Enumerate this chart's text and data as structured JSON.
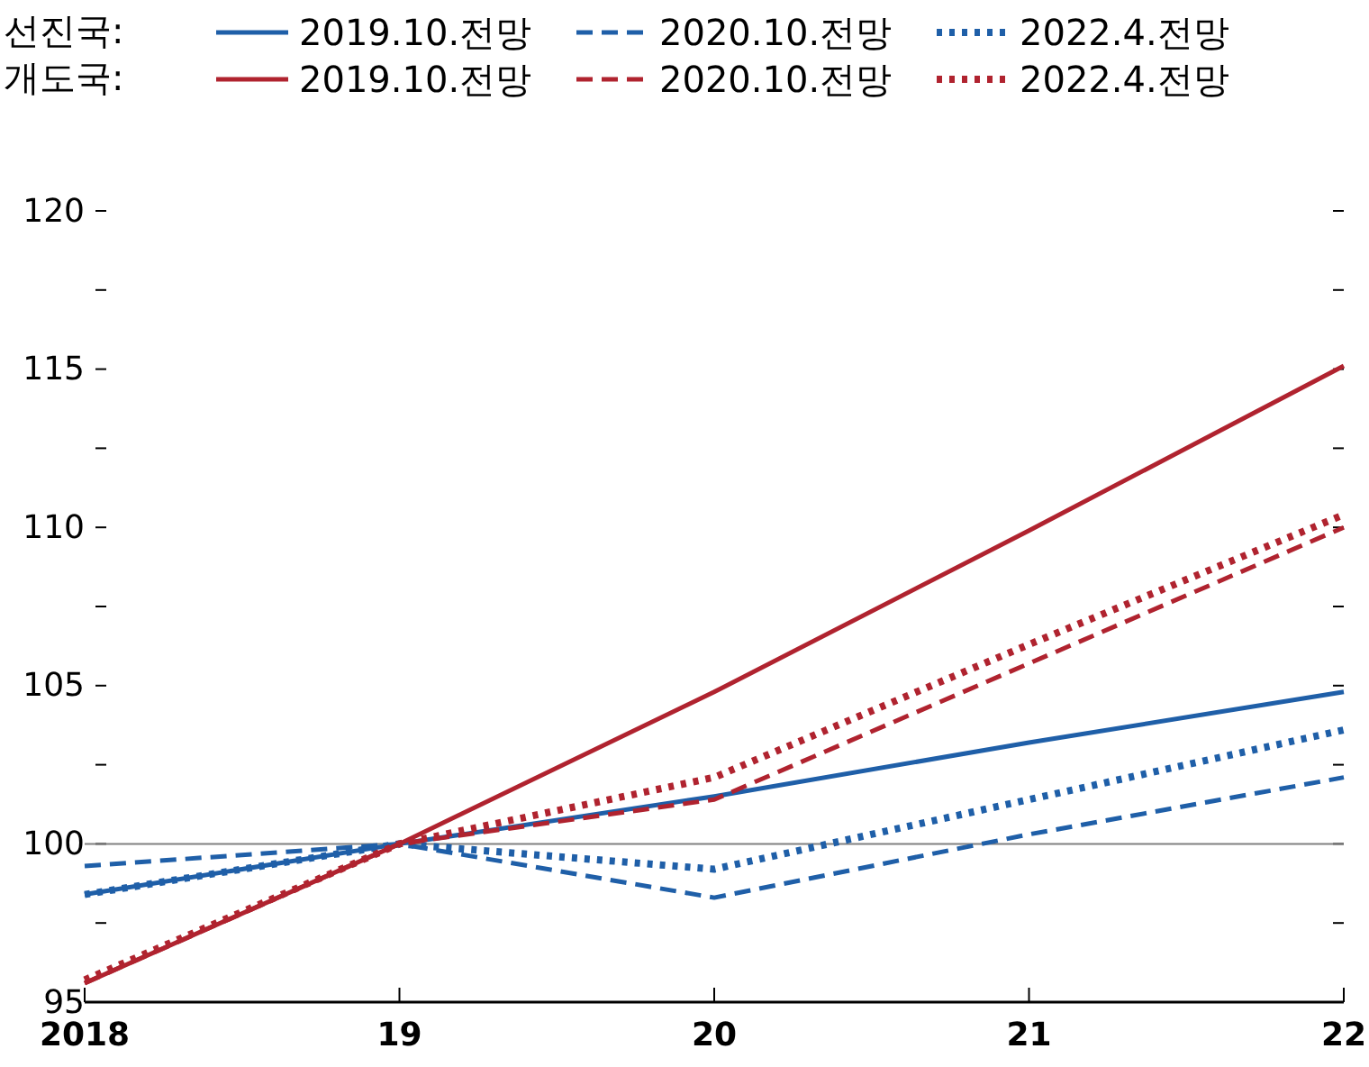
{
  "chart_data": {
    "type": "line",
    "x": [
      2018,
      2019,
      2020,
      2021,
      2022
    ],
    "xlim": [
      2018,
      2022
    ],
    "xticks": [
      {
        "value": 2018,
        "label": "2018"
      },
      {
        "value": 2019,
        "label": "19"
      },
      {
        "value": 2020,
        "label": "20"
      },
      {
        "value": 2021,
        "label": "21"
      },
      {
        "value": 2022,
        "label": "22"
      }
    ],
    "ylim": [
      95,
      120
    ],
    "yticks": [
      95,
      {
        "value": 97.5,
        "label": null
      },
      100,
      {
        "value": 102.5,
        "label": null
      },
      105,
      {
        "value": 107.5,
        "label": null
      },
      110,
      {
        "value": 112.5,
        "label": null
      },
      115,
      {
        "value": 117.5,
        "label": null
      },
      120
    ],
    "legend": "top",
    "annotations": [
      "선진국:",
      "개도국:"
    ],
    "ref_lines": [
      {
        "axis": "y",
        "value": 100,
        "color": "#808080"
      }
    ],
    "series": [
      {
        "name": "2019.10.전망",
        "color": "#1f5fa8",
        "line_style": "solid",
        "values": [
          98.4,
          100,
          101.5,
          103.2,
          104.8
        ]
      },
      {
        "name": "2020.10.전망",
        "color": "#1f5fa8",
        "line_style": "dashed",
        "values": [
          99.3,
          100,
          98.3,
          100.3,
          102.1
        ]
      },
      {
        "name": "2022.4.전망",
        "color": "#1f5fa8",
        "line_style": "dotted",
        "values": [
          98.4,
          100,
          99.2,
          101.4,
          103.6
        ]
      },
      {
        "name": "2019.10.전망",
        "color": "#b0232f",
        "line_style": "solid",
        "values": [
          95.6,
          100,
          104.8,
          109.9,
          115.1
        ]
      },
      {
        "name": "2020.10.전망",
        "color": "#b0232f",
        "line_style": "dashed",
        "values": [
          95.6,
          100,
          101.4,
          105.7,
          110.0
        ]
      },
      {
        "name": "2022.4.전망",
        "color": "#b0232f",
        "line_style": "dotted",
        "values": [
          95.7,
          100,
          102.1,
          106.3,
          110.4
        ]
      }
    ]
  }
}
